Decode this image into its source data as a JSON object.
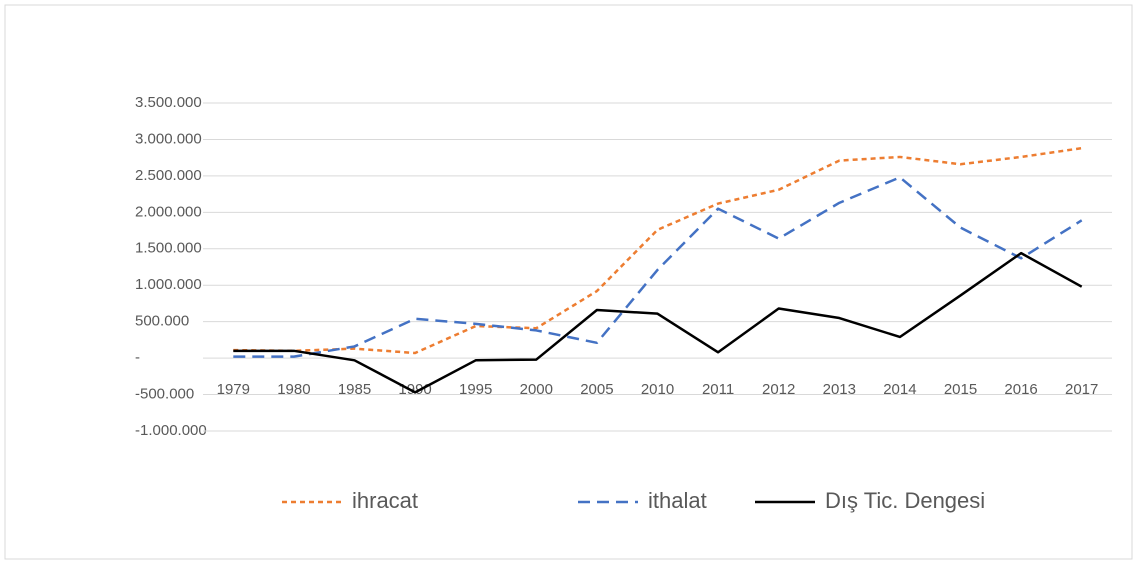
{
  "chart_data": {
    "type": "line",
    "categories": [
      "1979",
      "1980",
      "1985",
      "1990",
      "1995",
      "2000",
      "2005",
      "2010",
      "2011",
      "2012",
      "2013",
      "2014",
      "2015",
      "2016",
      "2017"
    ],
    "series": [
      {
        "name": "ihracat",
        "color": "#ed7d31",
        "dash": "5,4",
        "values": [
          110000,
          100000,
          130000,
          70000,
          440000,
          410000,
          920000,
          1760000,
          2120000,
          2310000,
          2710000,
          2760000,
          2660000,
          2760000,
          2880000
        ]
      },
      {
        "name": "ithalat",
        "color": "#4472c4",
        "dash": "12,7",
        "values": [
          20000,
          20000,
          160000,
          540000,
          470000,
          380000,
          210000,
          1210000,
          2050000,
          1640000,
          2130000,
          2480000,
          1790000,
          1370000,
          1890000
        ]
      },
      {
        "name": "Dış Tic. Dengesi",
        "color": "#000000",
        "dash": "none",
        "values": [
          100000,
          100000,
          -30000,
          -470000,
          -30000,
          -20000,
          660000,
          610000,
          80000,
          680000,
          550000,
          290000,
          860000,
          1440000,
          980000
        ]
      }
    ],
    "ylim": [
      -1000000,
      3500000
    ],
    "yticks": [
      {
        "value": -1000000,
        "label": "-1.000.000"
      },
      {
        "value": -500000,
        "label": "-500.000"
      },
      {
        "value": 0,
        "label": "-"
      },
      {
        "value": 500000,
        "label": "500.000"
      },
      {
        "value": 1000000,
        "label": "1.000.000"
      },
      {
        "value": 1500000,
        "label": "1.500.000"
      },
      {
        "value": 2000000,
        "label": "2.000.000"
      },
      {
        "value": 2500000,
        "label": "2.500.000"
      },
      {
        "value": 3000000,
        "label": "3.000.000"
      },
      {
        "value": 3500000,
        "label": "3.500.000"
      }
    ],
    "grid": true,
    "legend": "bottom"
  }
}
